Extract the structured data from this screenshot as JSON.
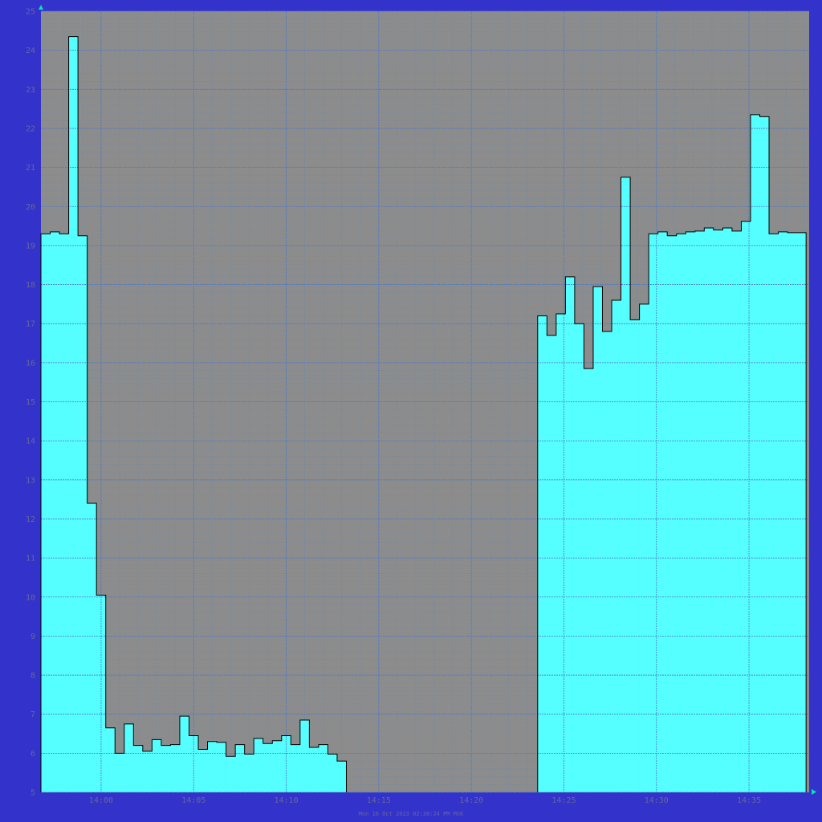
{
  "colors": {
    "background": "#3333cc",
    "plot_area": "#8c8c8c",
    "fill": "#55ffff",
    "outline": "#000000",
    "grid_major": "#4f78c8",
    "grid_minor": "#6b8aa8",
    "text": "#666699",
    "axis_arrow": "#00e6b8"
  },
  "footer_text": "Mon 16 Oct 2023 02:38:24 PM MSK",
  "chart_data": {
    "type": "area",
    "step": true,
    "title": "",
    "xlabel": "",
    "ylabel": "",
    "ylim": [
      5,
      25
    ],
    "xlim": [
      "13:56:45",
      "14:38:15"
    ],
    "grid": true,
    "legend": "none",
    "y_ticks": [
      5,
      6,
      7,
      8,
      9,
      10,
      11,
      12,
      13,
      14,
      15,
      16,
      17,
      18,
      19,
      20,
      21,
      22,
      23,
      24,
      25
    ],
    "x_ticks": [
      "14:00",
      "14:05",
      "14:10",
      "14:15",
      "14:20",
      "14:25",
      "14:30",
      "14:35"
    ],
    "interval_seconds": 30,
    "segments": [
      {
        "start": "13:56:45",
        "values": [
          19.3,
          19.35,
          19.3,
          24.35,
          19.25,
          12.4,
          10.05,
          6.65,
          6.0,
          6.75,
          6.2,
          6.05,
          6.35,
          6.2,
          6.22,
          6.95,
          6.45,
          6.1,
          6.3,
          6.28,
          5.92,
          6.22,
          5.98,
          6.38,
          6.25,
          6.32,
          6.45,
          6.22,
          6.85,
          6.15,
          6.22,
          5.98,
          5.8
        ]
      },
      {
        "start": "14:23:35",
        "values": [
          17.2,
          16.7,
          17.25,
          18.2,
          17.0,
          15.85,
          17.95,
          16.8,
          17.6,
          20.75,
          17.1,
          17.5,
          19.3,
          19.35,
          19.25,
          19.3,
          19.35,
          19.37,
          19.45,
          19.4,
          19.45,
          19.37,
          19.62,
          22.35,
          22.3,
          19.3,
          19.35,
          19.33,
          19.33
        ]
      }
    ]
  }
}
